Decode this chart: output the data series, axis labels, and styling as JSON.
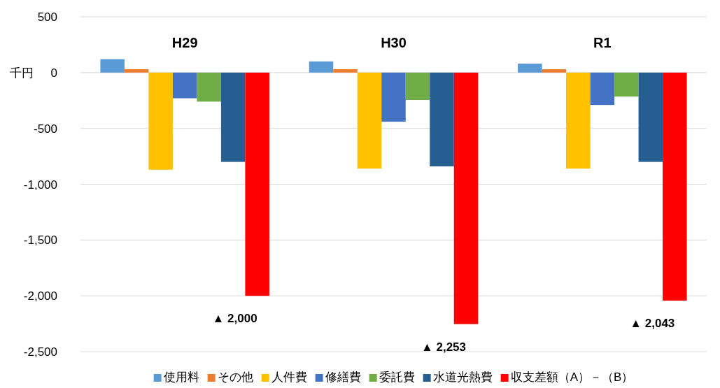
{
  "chart_data": {
    "type": "bar",
    "ylabel": "千円",
    "categories": [
      "H29",
      "H30",
      "R1"
    ],
    "series": [
      {
        "name": "使用料",
        "color": "#5b9bd5",
        "values": [
          120,
          100,
          80
        ]
      },
      {
        "name": "その他",
        "color": "#ed7d31",
        "values": [
          30,
          30,
          30
        ]
      },
      {
        "name": "人件費",
        "color": "#ffc000",
        "values": [
          -870,
          -860,
          -860
        ]
      },
      {
        "name": "修繕費",
        "color": "#4472c4",
        "values": [
          -230,
          -440,
          -290
        ]
      },
      {
        "name": "委託費",
        "color": "#70ad47",
        "values": [
          -260,
          -245,
          -215
        ]
      },
      {
        "name": "水道光熱費",
        "color": "#255e91",
        "values": [
          -800,
          -840,
          -800
        ]
      },
      {
        "name": "収支差額（A）－（B）",
        "color": "#ff0000",
        "values": [
          -2000,
          -2253,
          -2043
        ]
      }
    ],
    "ylim": [
      -2500,
      500
    ],
    "yticks": [
      {
        "value": 500,
        "label": "500"
      },
      {
        "value": 0,
        "label": "0"
      },
      {
        "value": -500,
        "label": "-500"
      },
      {
        "value": -1000,
        "label": "-1,000"
      },
      {
        "value": -1500,
        "label": "-1,500"
      },
      {
        "value": -2000,
        "label": "-2,000"
      },
      {
        "value": -2500,
        "label": "-2,500"
      }
    ],
    "grid": "y",
    "legend": "bottom",
    "annotations": [
      "▲ 2,000",
      "▲ 2,253",
      "▲ 2,043"
    ]
  }
}
